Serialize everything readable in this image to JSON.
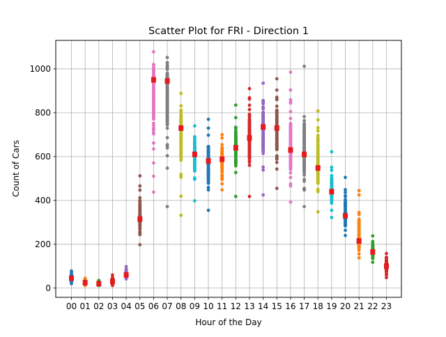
{
  "chart_data": {
    "type": "scatter",
    "title": "Scatter Plot for FRI - Direction 1",
    "xlabel": "Hour of the Day",
    "ylabel": "Count of Cars",
    "categories": [
      "00",
      "01",
      "02",
      "03",
      "04",
      "05",
      "06",
      "07",
      "08",
      "09",
      "10",
      "11",
      "12",
      "13",
      "14",
      "15",
      "16",
      "17",
      "18",
      "19",
      "20",
      "21",
      "22",
      "23"
    ],
    "ylim": [
      -42,
      1130
    ],
    "yticks": [
      0,
      200,
      400,
      600,
      800,
      1000
    ],
    "grid": true,
    "colors": [
      "#1f77b4",
      "#ff7f0e",
      "#2ca02c",
      "#d62728",
      "#9467bd",
      "#8c564b",
      "#e377c2",
      "#7f7f7f",
      "#bcbd22",
      "#17becf"
    ],
    "mean_color": "#e41a1c",
    "ranges": [
      {
        "min": 20,
        "max": 78,
        "mean": 45
      },
      {
        "min": 12,
        "max": 45,
        "mean": 25
      },
      {
        "min": 12,
        "max": 35,
        "mean": 20
      },
      {
        "min": 12,
        "max": 60,
        "mean": 30
      },
      {
        "min": 42,
        "max": 98,
        "mean": 60
      },
      {
        "min": 198,
        "max": 512,
        "mean": 315
      },
      {
        "min": 438,
        "max": 1078,
        "mean": 950
      },
      {
        "min": 372,
        "max": 1052,
        "mean": 945
      },
      {
        "min": 332,
        "max": 888,
        "mean": 730
      },
      {
        "min": 398,
        "max": 740,
        "mean": 610
      },
      {
        "min": 355,
        "max": 770,
        "mean": 580
      },
      {
        "min": 448,
        "max": 700,
        "mean": 588
      },
      {
        "min": 418,
        "max": 835,
        "mean": 640
      },
      {
        "min": 418,
        "max": 910,
        "mean": 685
      },
      {
        "min": 425,
        "max": 935,
        "mean": 735
      },
      {
        "min": 455,
        "max": 955,
        "mean": 730
      },
      {
        "min": 392,
        "max": 985,
        "mean": 630
      },
      {
        "min": 372,
        "max": 1012,
        "mean": 610
      },
      {
        "min": 348,
        "max": 808,
        "mean": 548
      },
      {
        "min": 322,
        "max": 622,
        "mean": 440
      },
      {
        "min": 240,
        "max": 505,
        "mean": 330
      },
      {
        "min": 138,
        "max": 445,
        "mean": 215
      },
      {
        "min": 118,
        "max": 238,
        "mean": 165
      },
      {
        "min": 48,
        "max": 158,
        "mean": 100
      }
    ]
  }
}
